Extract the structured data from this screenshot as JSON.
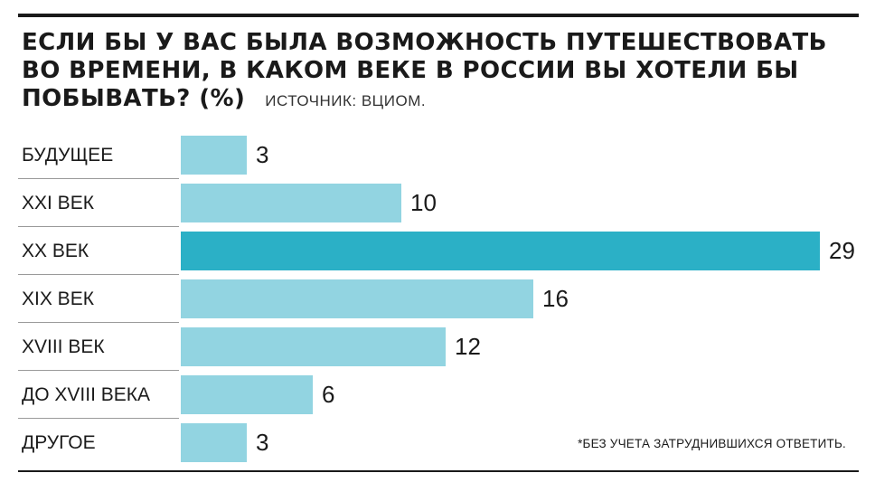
{
  "header": {
    "title": "ЕСЛИ БЫ У ВАС БЫЛА ВОЗМОЖНОСТЬ ПУТЕШЕСТВОВАТЬ ВО ВРЕМЕНИ, В КАКОМ ВЕКЕ В РОССИИ ВЫ ХОТЕЛИ БЫ ПОБЫВАТЬ? (%)",
    "source": "ИСТОЧНИК: ВЦИОМ."
  },
  "footnote": "*БЕЗ УЧЕТА ЗАТРУДНИВШИХСЯ ОТВЕТИТЬ.",
  "colors": {
    "bar": "#92d4e1",
    "highlight": "#2bb0c6",
    "text": "#1a1a1a"
  },
  "chart_data": {
    "type": "bar",
    "orientation": "horizontal",
    "title": "ЕСЛИ БЫ У ВАС БЫЛА ВОЗМОЖНОСТЬ ПУТЕШЕСТВОВАТЬ ВО ВРЕМЕНИ, В КАКОМ ВЕКЕ В РОССИИ ВЫ ХОТЕЛИ БЫ ПОБЫВАТЬ? (%)",
    "categories": [
      "БУДУЩЕЕ",
      "XXI ВЕК",
      "XX ВЕК",
      "XIX ВЕК",
      "XVIII ВЕК",
      "ДО XVIII ВЕКА",
      "ДРУГОЕ"
    ],
    "values": [
      3,
      10,
      29,
      16,
      12,
      6,
      3
    ],
    "highlight_index": 2,
    "xlim": [
      0,
      29
    ],
    "grid": false,
    "legend": "none"
  }
}
